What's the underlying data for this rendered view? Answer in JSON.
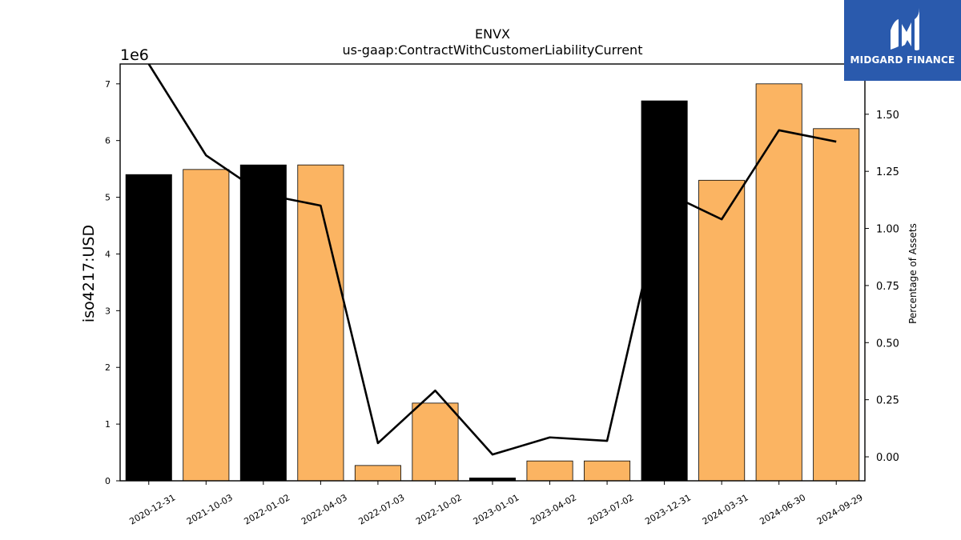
{
  "chart_data": {
    "type": "bar",
    "title": "ENVX",
    "subtitle": "us-gaap:ContractWithCustomerLiabilityCurrent",
    "ylabel": "iso4217:USD",
    "y2label": "Percentage of Assets",
    "y_offset_text": "1e6",
    "categories": [
      "2020-12-31",
      "2021-10-03",
      "2022-01-02",
      "2022-04-03",
      "2022-07-03",
      "2022-10-02",
      "2023-01-01",
      "2023-04-02",
      "2023-07-02",
      "2023-12-31",
      "2024-03-31",
      "2024-06-30",
      "2024-09-29"
    ],
    "values": [
      5.4,
      5.49,
      5.57,
      5.57,
      0.27,
      1.37,
      0.05,
      0.35,
      0.35,
      6.7,
      5.3,
      7.0,
      6.21
    ],
    "bar_colors": [
      "#000000",
      "#fbb462",
      "#000000",
      "#fbb462",
      "#fbb462",
      "#fbb462",
      "#000000",
      "#fbb462",
      "#fbb462",
      "#000000",
      "#fbb462",
      "#fbb462",
      "#fbb462"
    ],
    "ylim": [
      0,
      7.35
    ],
    "yticks": [
      0,
      1,
      2,
      3,
      4,
      5,
      6,
      7
    ],
    "line": {
      "values": [
        1.72,
        1.32,
        1.15,
        1.1,
        0.06,
        0.29,
        0.01,
        0.085,
        0.07,
        1.16,
        1.04,
        1.43,
        1.38
      ]
    },
    "y2lim": [
      -0.105,
      1.72
    ],
    "y2ticks": [
      "0.00",
      "0.25",
      "0.50",
      "0.75",
      "1.00",
      "1.25",
      "1.50"
    ],
    "grid": false
  },
  "logo": {
    "text": "MIDGARD FINANCE",
    "icon": "midgard-logo-icon"
  }
}
